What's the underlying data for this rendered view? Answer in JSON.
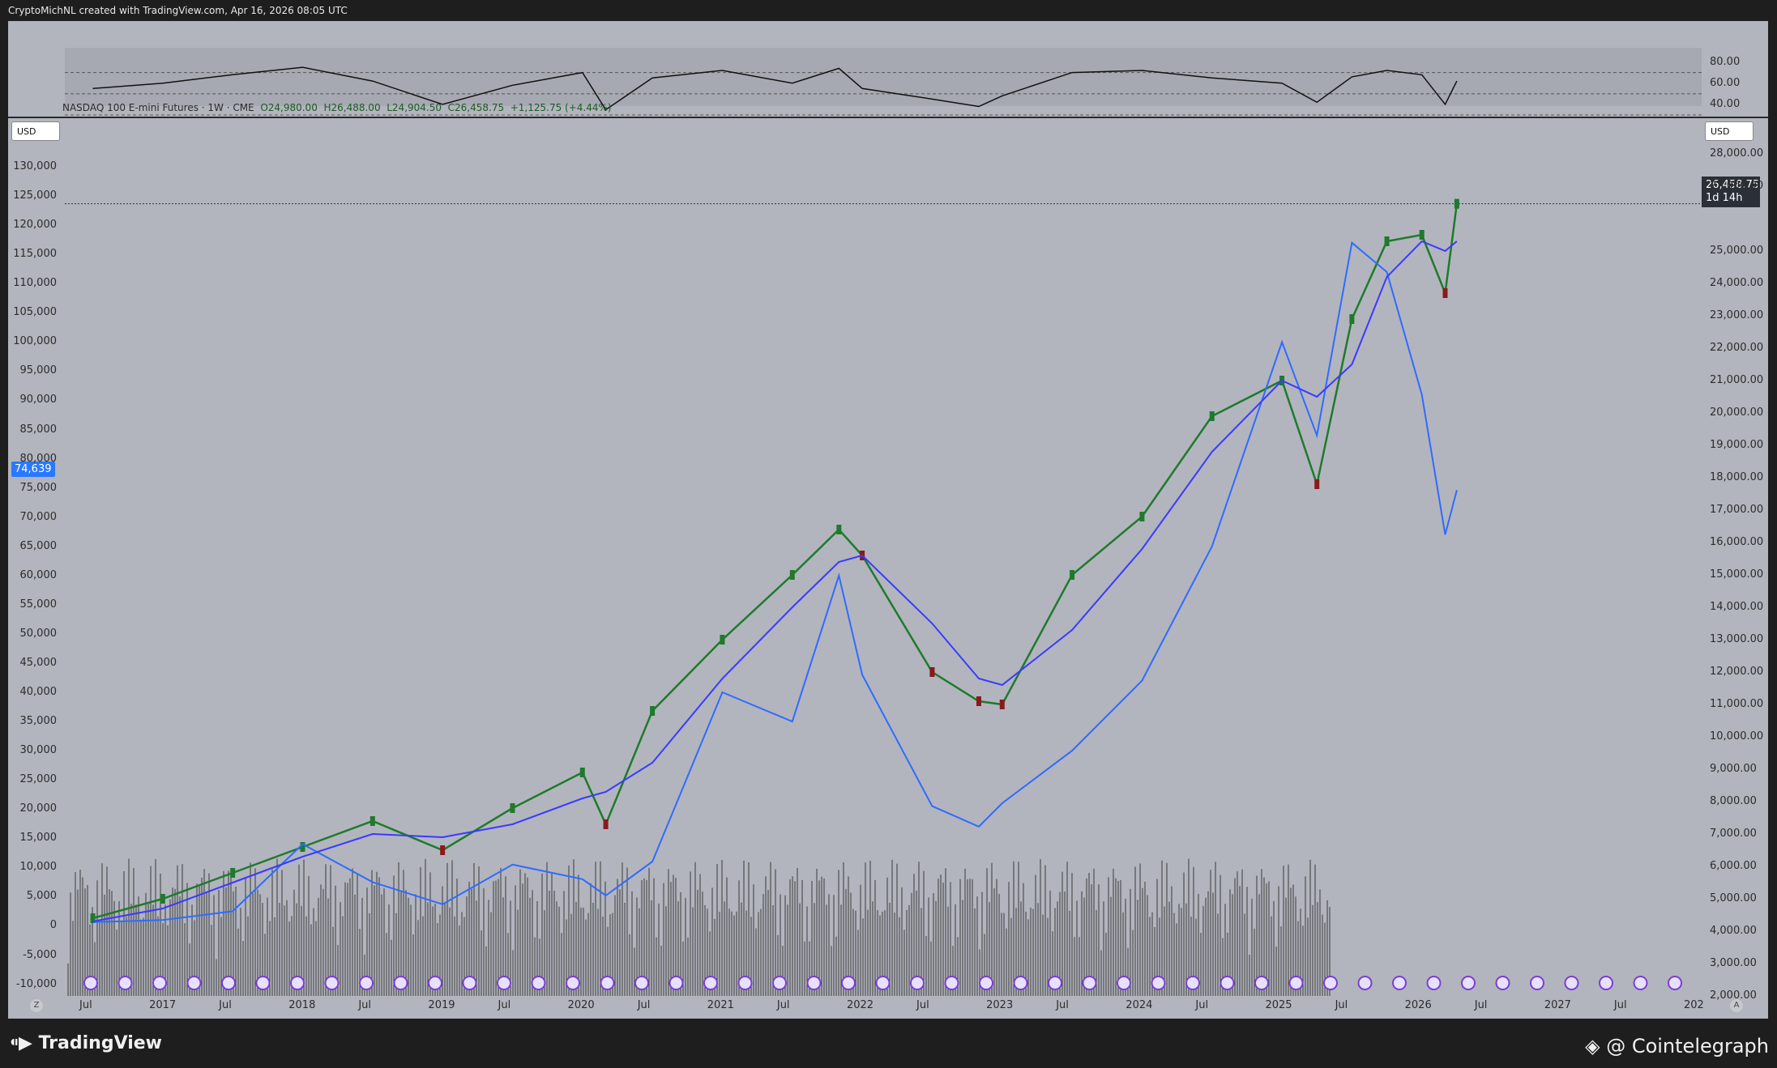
{
  "header": {
    "credit": "CryptoMichNL created with TradingView.com, Apr 16, 2026 08:05 UTC"
  },
  "footer": {
    "brand": "TradingView",
    "watermark": "@ Cointelegraph"
  },
  "legend": {
    "symbol": "NASDAQ 100 E-mini Futures · 1W · CME",
    "open": "O24,980.00",
    "high": "H26,488.00",
    "low": "L24,904.50",
    "close": "C26,458.75",
    "change": "+1,125.75 (+4.44%)"
  },
  "currency_left": "USD",
  "currency_right": "USD",
  "badges": {
    "left_value": "74,639",
    "right_price": "26,458.75",
    "right_countdown": "1d 14h"
  },
  "axes": {
    "rsi_labels": [
      "80.00",
      "60.00",
      "40.00"
    ],
    "left_labels": [
      "130,000",
      "125,000",
      "120,000",
      "115,000",
      "110,000",
      "105,000",
      "100,000",
      "95,000",
      "90,000",
      "85,000",
      "80,000",
      "75,000",
      "70,000",
      "65,000",
      "60,000",
      "55,000",
      "50,000",
      "45,000",
      "40,000",
      "35,000",
      "30,000",
      "25,000",
      "20,000",
      "15,000",
      "10,000",
      "5,000",
      "0",
      "-5,000",
      "-10,000"
    ],
    "right_labels": [
      "28,000.00",
      "27,000.00",
      "25,000.00",
      "24,000.00",
      "23,000.00",
      "22,000.00",
      "21,000.00",
      "20,000.00",
      "19,000.00",
      "18,000.00",
      "17,000.00",
      "16,000.00",
      "15,000.00",
      "14,000.00",
      "13,000.00",
      "12,000.00",
      "11,000.00",
      "10,000.00",
      "9,000.00",
      "8,000.00",
      "7,000.00",
      "6,000.00",
      "5,000.00",
      "4,000.00",
      "3,000.00",
      "2,000.00"
    ],
    "time_labels": [
      {
        "t": "Jul",
        "year": false
      },
      {
        "t": "2017",
        "year": true
      },
      {
        "t": "Jul",
        "year": false
      },
      {
        "t": "2018",
        "year": true
      },
      {
        "t": "Jul",
        "year": false
      },
      {
        "t": "2019",
        "year": true
      },
      {
        "t": "Jul",
        "year": false
      },
      {
        "t": "2020",
        "year": true
      },
      {
        "t": "Jul",
        "year": false
      },
      {
        "t": "2021",
        "year": true
      },
      {
        "t": "Jul",
        "year": false
      },
      {
        "t": "2022",
        "year": true
      },
      {
        "t": "Jul",
        "year": false
      },
      {
        "t": "2023",
        "year": true
      },
      {
        "t": "Jul",
        "year": false
      },
      {
        "t": "2024",
        "year": true
      },
      {
        "t": "Jul",
        "year": false
      },
      {
        "t": "2025",
        "year": true
      },
      {
        "t": "Jul",
        "year": false
      },
      {
        "t": "2026",
        "year": true
      },
      {
        "t": "Jul",
        "year": false
      },
      {
        "t": "2027",
        "year": true
      },
      {
        "t": "Jul",
        "year": false
      },
      {
        "t": "202",
        "year": true
      }
    ],
    "corner_left": "Z",
    "corner_right": "A"
  },
  "colors": {
    "bg": "#b2b5be",
    "up": "#1f7a2c",
    "down": "#8a1a1a",
    "btc": "#2f6bff",
    "ma": "#3a3aff",
    "rsi": "#111111",
    "volume": "#3a3a3a"
  },
  "chart_data": {
    "type": "line",
    "title": "NASDAQ 100 E-mini Futures · 1W · CME",
    "x": [
      "2016-07",
      "2017-01",
      "2017-07",
      "2018-01",
      "2018-07",
      "2019-01",
      "2019-07",
      "2020-01",
      "2020-03",
      "2020-07",
      "2021-01",
      "2021-07",
      "2021-11",
      "2022-01",
      "2022-07",
      "2022-11",
      "2023-01",
      "2023-07",
      "2024-01",
      "2024-07",
      "2025-01",
      "2025-04",
      "2025-07",
      "2025-10",
      "2026-01",
      "2026-03",
      "2026-04"
    ],
    "series": [
      {
        "name": "NASDAQ 100 E-mini Futures",
        "axis": "right",
        "values": [
          4400,
          5000,
          5800,
          6600,
          7400,
          6500,
          7800,
          8900,
          7300,
          10800,
          13000,
          15000,
          16400,
          15600,
          12000,
          11100,
          11000,
          15000,
          16800,
          19900,
          21000,
          17800,
          22900,
          25300,
          25500,
          23700,
          26458.75
        ]
      },
      {
        "name": "",
        "axis": "left",
        "values": [
          650,
          1000,
          2500,
          14000,
          7500,
          3700,
          10500,
          8000,
          5200,
          11000,
          40000,
          35000,
          60000,
          43000,
          20500,
          17000,
          21000,
          30000,
          42000,
          65000,
          100000,
          84000,
          117000,
          112000,
          91000,
          67000,
          74639
        ]
      },
      {
        "name": "",
        "axis": "right",
        "values": [
          4300,
          4700,
          5500,
          6300,
          7000,
          6900,
          7300,
          8100,
          8300,
          9200,
          11800,
          14000,
          15400,
          15600,
          13500,
          11800,
          11600,
          13300,
          15800,
          18800,
          21000,
          20500,
          21500,
          24200,
          25300,
          25000,
          25300
        ]
      }
    ],
    "rsi": {
      "values": [
        55,
        60,
        68,
        75,
        62,
        40,
        58,
        70,
        35,
        65,
        72,
        60,
        74,
        55,
        45,
        38,
        48,
        70,
        72,
        65,
        60,
        42,
        66,
        72,
        68,
        40,
        62
      ],
      "ylim": [
        30,
        85
      ]
    },
    "ylim_left": [
      -12000,
      135000
    ],
    "ylim_right": [
      2000,
      28500
    ]
  }
}
